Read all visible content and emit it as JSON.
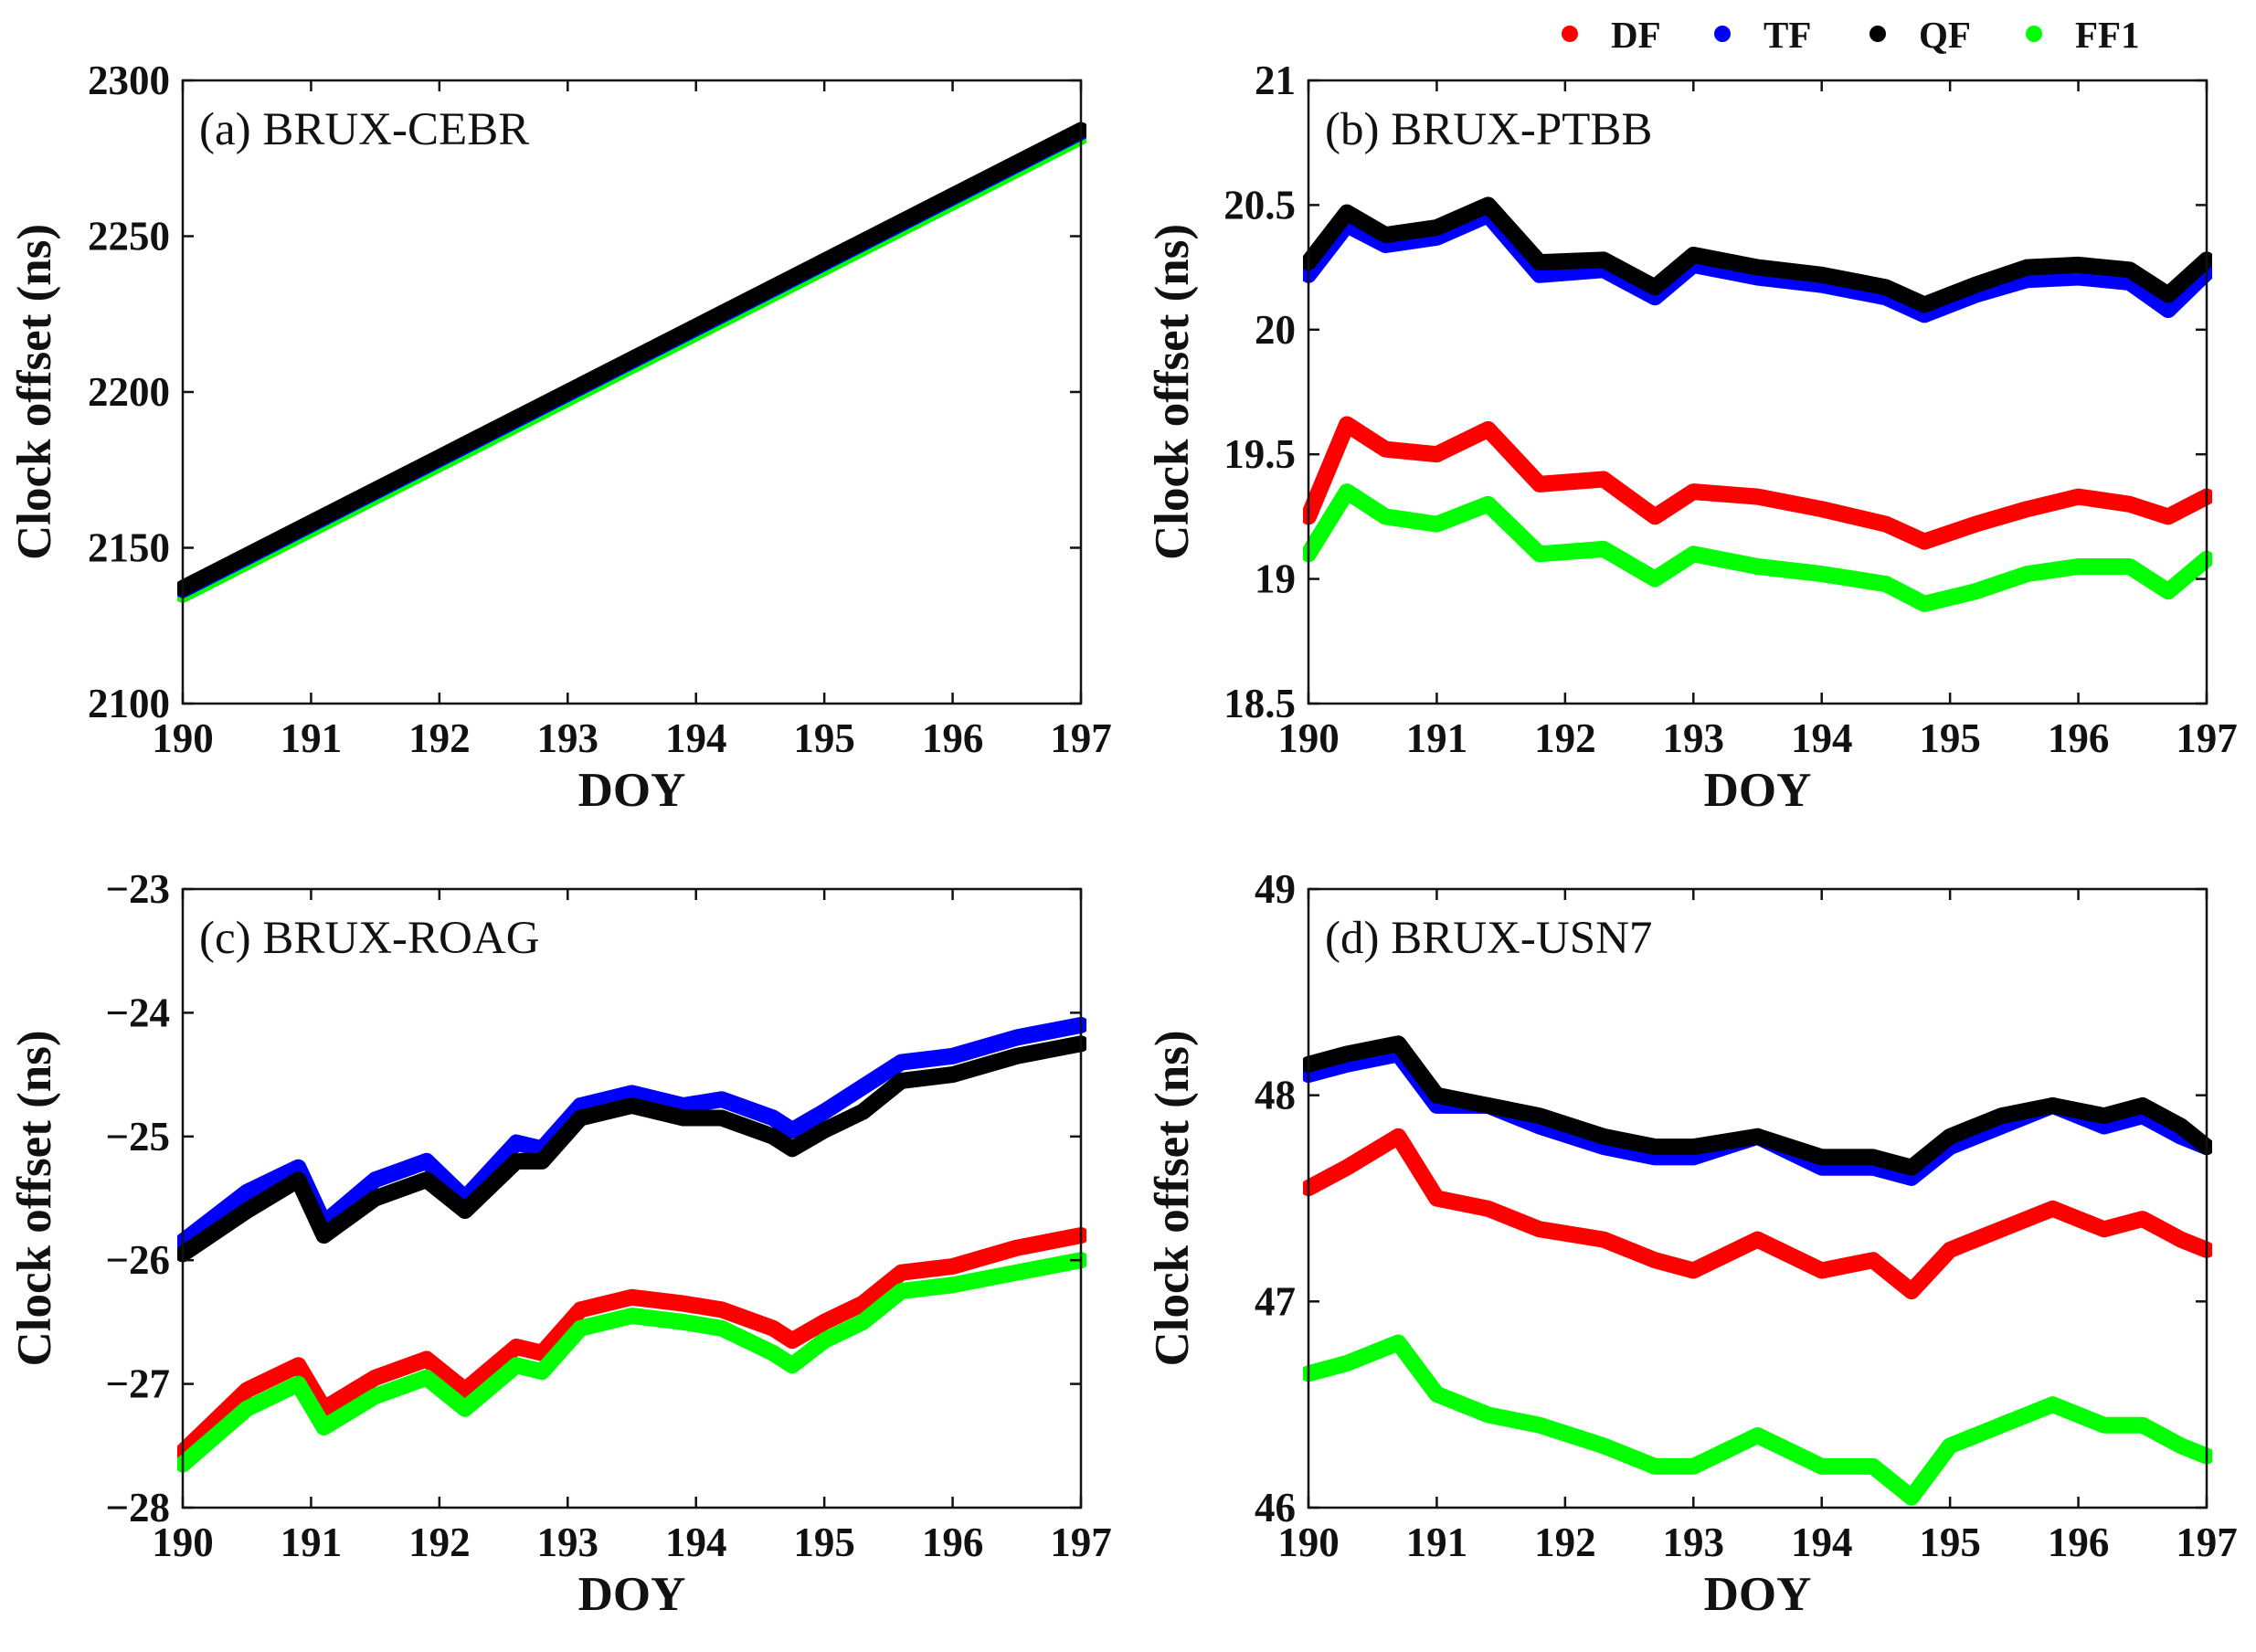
{
  "legend": [
    {
      "key": "DF",
      "label": "DF",
      "color": "#ff0000"
    },
    {
      "key": "TF",
      "label": "TF",
      "color": "#0000ff"
    },
    {
      "key": "QF",
      "label": "QF",
      "color": "#000000"
    },
    {
      "key": "FF1",
      "label": "FF1",
      "color": "#00ff00"
    }
  ],
  "chart_data": [
    {
      "type": "line",
      "title": "(a) BRUX-CEBR",
      "xlabel": "DOY",
      "ylabel": "Clock offset (ns)",
      "xlim": [
        190,
        197
      ],
      "ylim": [
        2100,
        2300
      ],
      "xticks": [
        "190",
        "191",
        "192",
        "193",
        "194",
        "195",
        "196",
        "197"
      ],
      "yticks": [
        "2100",
        "2150",
        "2200",
        "2250",
        "2300"
      ],
      "x": [
        190,
        191,
        192,
        193,
        194,
        195,
        196,
        197
      ],
      "series": [
        {
          "key": "TF",
          "name": "TF",
          "values": [
            2136.5,
            2157.5,
            2178.5,
            2199.5,
            2220.5,
            2241.5,
            2262.5,
            2283.5
          ]
        },
        {
          "key": "QF",
          "name": "QF",
          "values": [
            2137,
            2158,
            2179,
            2200,
            2221,
            2242,
            2263,
            2284
          ]
        },
        {
          "key": "DF",
          "name": "DF",
          "values": [
            2135,
            2156,
            2177,
            2198,
            2219,
            2240,
            2261,
            2282
          ]
        },
        {
          "key": "FF1",
          "name": "FF1",
          "values": [
            2135,
            2156,
            2177,
            2198,
            2219,
            2240,
            2261,
            2282
          ]
        }
      ]
    },
    {
      "type": "line",
      "title": "(b) BRUX-PTBB",
      "xlabel": "DOY",
      "ylabel": "Clock offset (ns)",
      "xlim": [
        190,
        197
      ],
      "ylim": [
        18.5,
        21
      ],
      "xticks": [
        "190",
        "191",
        "192",
        "193",
        "194",
        "195",
        "196",
        "197"
      ],
      "yticks": [
        "18.5",
        "19",
        "19.5",
        "20",
        "20.5",
        "21"
      ],
      "x": [
        190,
        190.3,
        190.6,
        191,
        191.4,
        191.8,
        192.3,
        192.7,
        193,
        193.5,
        194,
        194.5,
        194.8,
        195.2,
        195.6,
        196,
        196.4,
        196.7,
        197
      ],
      "series": [
        {
          "key": "TF",
          "name": "TF",
          "values": [
            20.22,
            20.42,
            20.34,
            20.37,
            20.46,
            20.22,
            20.24,
            20.13,
            20.26,
            20.21,
            20.18,
            20.13,
            20.06,
            20.14,
            20.2,
            20.21,
            20.19,
            20.08,
            20.23
          ]
        },
        {
          "key": "QF",
          "name": "QF",
          "values": [
            20.27,
            20.47,
            20.38,
            20.41,
            20.5,
            20.27,
            20.28,
            20.17,
            20.3,
            20.25,
            20.22,
            20.17,
            20.1,
            20.18,
            20.25,
            20.26,
            20.24,
            20.14,
            20.28
          ]
        },
        {
          "key": "DF",
          "name": "DF",
          "values": [
            19.25,
            19.62,
            19.52,
            19.5,
            19.6,
            19.38,
            19.4,
            19.25,
            19.35,
            19.33,
            19.28,
            19.22,
            19.15,
            19.22,
            19.28,
            19.33,
            19.3,
            19.25,
            19.33
          ]
        },
        {
          "key": "FF1",
          "name": "FF1",
          "values": [
            19.1,
            19.35,
            19.25,
            19.22,
            19.3,
            19.1,
            19.12,
            19.0,
            19.1,
            19.05,
            19.02,
            18.98,
            18.9,
            18.95,
            19.02,
            19.05,
            19.05,
            18.95,
            19.08
          ]
        }
      ]
    },
    {
      "type": "line",
      "title": "(c) BRUX-ROAG",
      "xlabel": "DOY",
      "ylabel": "Clock offset (ns)",
      "xlim": [
        190,
        197
      ],
      "ylim": [
        -28,
        -23
      ],
      "xticks": [
        "190",
        "191",
        "192",
        "193",
        "194",
        "195",
        "196",
        "197"
      ],
      "yticks": [
        "−28",
        "−27",
        "−26",
        "−25",
        "−24",
        "−23"
      ],
      "x": [
        190,
        190.5,
        190.9,
        191.1,
        191.5,
        191.9,
        192.2,
        192.6,
        192.8,
        193.1,
        193.5,
        193.9,
        194.2,
        194.6,
        194.75,
        195,
        195.3,
        195.6,
        196,
        196.5,
        197
      ],
      "series": [
        {
          "key": "TF",
          "name": "TF",
          "values": [
            -25.85,
            -25.45,
            -25.25,
            -25.7,
            -25.35,
            -25.2,
            -25.5,
            -25.05,
            -25.1,
            -24.75,
            -24.65,
            -24.75,
            -24.7,
            -24.85,
            -24.95,
            -24.8,
            -24.6,
            -24.4,
            -24.35,
            -24.2,
            -24.1
          ]
        },
        {
          "key": "QF",
          "name": "QF",
          "values": [
            -25.95,
            -25.6,
            -25.35,
            -25.8,
            -25.5,
            -25.35,
            -25.6,
            -25.2,
            -25.2,
            -24.85,
            -24.75,
            -24.85,
            -24.85,
            -25.0,
            -25.1,
            -24.95,
            -24.8,
            -24.55,
            -24.5,
            -24.35,
            -24.25
          ]
        },
        {
          "key": "DF",
          "name": "DF",
          "values": [
            -27.55,
            -27.05,
            -26.85,
            -27.2,
            -26.95,
            -26.8,
            -27.05,
            -26.7,
            -26.75,
            -26.4,
            -26.3,
            -26.35,
            -26.4,
            -26.55,
            -26.65,
            -26.5,
            -26.35,
            -26.1,
            -26.05,
            -25.9,
            -25.8
          ]
        },
        {
          "key": "FF1",
          "name": "FF1",
          "values": [
            -27.65,
            -27.2,
            -27.0,
            -27.35,
            -27.1,
            -26.95,
            -27.2,
            -26.85,
            -26.9,
            -26.55,
            -26.45,
            -26.5,
            -26.55,
            -26.75,
            -26.85,
            -26.65,
            -26.5,
            -26.25,
            -26.2,
            -26.1,
            -26.0
          ]
        }
      ]
    },
    {
      "type": "line",
      "title": "(d) BRUX-USN7",
      "xlabel": "DOY",
      "ylabel": "Clock offset (ns)",
      "xlim": [
        190,
        197
      ],
      "ylim": [
        46,
        49
      ],
      "xticks": [
        "190",
        "191",
        "192",
        "193",
        "194",
        "195",
        "196",
        "197"
      ],
      "yticks": [
        "46",
        "47",
        "48",
        "49"
      ],
      "x": [
        190,
        190.3,
        190.7,
        191,
        191.4,
        191.8,
        192.3,
        192.7,
        193,
        193.5,
        194,
        194.4,
        194.7,
        195,
        195.4,
        195.8,
        196.2,
        196.5,
        196.8,
        197
      ],
      "series": [
        {
          "key": "TF",
          "name": "TF",
          "values": [
            48.1,
            48.15,
            48.2,
            47.95,
            47.95,
            47.85,
            47.75,
            47.7,
            47.7,
            47.8,
            47.65,
            47.65,
            47.6,
            47.75,
            47.85,
            47.95,
            47.85,
            47.9,
            47.8,
            47.75
          ]
        },
        {
          "key": "QF",
          "name": "QF",
          "values": [
            48.15,
            48.2,
            48.25,
            48.0,
            47.95,
            47.9,
            47.8,
            47.75,
            47.75,
            47.8,
            47.7,
            47.7,
            47.65,
            47.8,
            47.9,
            47.95,
            47.9,
            47.95,
            47.85,
            47.75
          ]
        },
        {
          "key": "DF",
          "name": "DF",
          "values": [
            47.55,
            47.65,
            47.8,
            47.5,
            47.45,
            47.35,
            47.3,
            47.2,
            47.15,
            47.3,
            47.15,
            47.2,
            47.05,
            47.25,
            47.35,
            47.45,
            47.35,
            47.4,
            47.3,
            47.25
          ]
        },
        {
          "key": "FF1",
          "name": "FF1",
          "values": [
            46.65,
            46.7,
            46.8,
            46.55,
            46.45,
            46.4,
            46.3,
            46.2,
            46.2,
            46.35,
            46.2,
            46.2,
            46.05,
            46.3,
            46.4,
            46.5,
            46.4,
            46.4,
            46.3,
            46.25
          ]
        }
      ]
    }
  ]
}
